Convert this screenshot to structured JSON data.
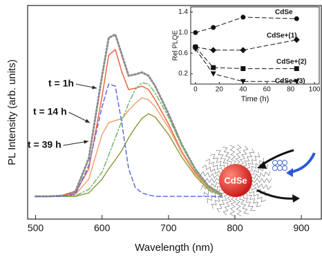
{
  "chart_data": [
    {
      "type": "line",
      "x_label": "Wavelength (nm)",
      "y_label": "PL Intensity (arb. units)",
      "x": [
        500,
        520,
        540,
        560,
        580,
        600,
        610,
        620,
        630,
        640,
        650,
        660,
        670,
        680,
        700,
        720,
        740,
        760,
        780
      ],
      "xlim": [
        488,
        930
      ],
      "xticks": [
        500,
        600,
        700,
        800,
        900
      ],
      "ylim": [
        0,
        310
      ],
      "annotations": [
        "t = 1h",
        "t = 14 h",
        "t = 39 h"
      ],
      "series": [
        {
          "color": "#8c8c8c",
          "style": "dotted",
          "values": [
            33,
            33,
            34,
            40,
            88,
            208,
            263,
            268,
            238,
            208,
            210,
            213,
            208,
            193,
            153,
            108,
            73,
            48,
            36
          ]
        },
        {
          "color": "#f0643c",
          "style": "solid",
          "values": [
            33,
            33,
            34,
            38,
            73,
            178,
            238,
            246,
            213,
            188,
            190,
            193,
            188,
            173,
            138,
            98,
            68,
            46,
            35
          ]
        },
        {
          "color": "#f5a06e",
          "style": "solid",
          "values": [
            33,
            33,
            33,
            36,
            58,
            123,
            140,
            143,
            146,
            158,
            168,
            176,
            173,
            163,
            133,
            96,
            66,
            45,
            35
          ]
        },
        {
          "color": "#6cb86c",
          "style": "dashdot",
          "values": [
            33,
            33,
            33,
            34,
            43,
            68,
            93,
            118,
            143,
            168,
            188,
            198,
            196,
            183,
            148,
            106,
            71,
            46,
            35
          ]
        },
        {
          "color": "#8c9a3c",
          "style": "solid",
          "values": [
            33,
            33,
            33,
            33,
            38,
            58,
            73,
            86,
            100,
            118,
            133,
            146,
            153,
            148,
            123,
            90,
            63,
            43,
            34
          ]
        },
        {
          "color": "#5a6ee0",
          "style": "dashed",
          "values": [
            33,
            33,
            33,
            36,
            78,
            163,
            196,
            193,
            138,
            73,
            46,
            38,
            35,
            33,
            33,
            33,
            33,
            33,
            33
          ]
        }
      ]
    },
    {
      "type": "line",
      "x_label": "Time (h)",
      "y_label": "Rel PLQE",
      "x": [
        0,
        15,
        40,
        85
      ],
      "xlim": [
        -4,
        104
      ],
      "xticks": [
        0,
        20,
        40,
        60,
        80,
        100
      ],
      "ylim": [
        0,
        1.5
      ],
      "yticks": [
        0.2,
        0.6,
        {
          "value": 1.0,
          "label": "1.0"
        },
        1.4
      ],
      "series": [
        {
          "name": "CdSe",
          "marker": "circle",
          "color": "#111111",
          "style": "dashed",
          "values": [
            1.0,
            1.1,
            1.3,
            1.27
          ]
        },
        {
          "name": "CdSe+(1)",
          "marker": "diamond",
          "color": "#111111",
          "style": "dashed",
          "values": [
            0.72,
            0.66,
            0.66,
            0.86
          ]
        },
        {
          "name": "CdSe+(2)",
          "marker": "square",
          "color": "#111111",
          "style": "dashed",
          "values": [
            0.72,
            0.32,
            0.3,
            0.3
          ]
        },
        {
          "name": "CdSe+(3)",
          "marker": "triangle-down",
          "color": "#111111",
          "style": "dashed",
          "values": [
            0.68,
            0.2,
            0.05,
            0.05
          ]
        }
      ]
    }
  ],
  "illustration": {
    "label": "CdSe"
  }
}
